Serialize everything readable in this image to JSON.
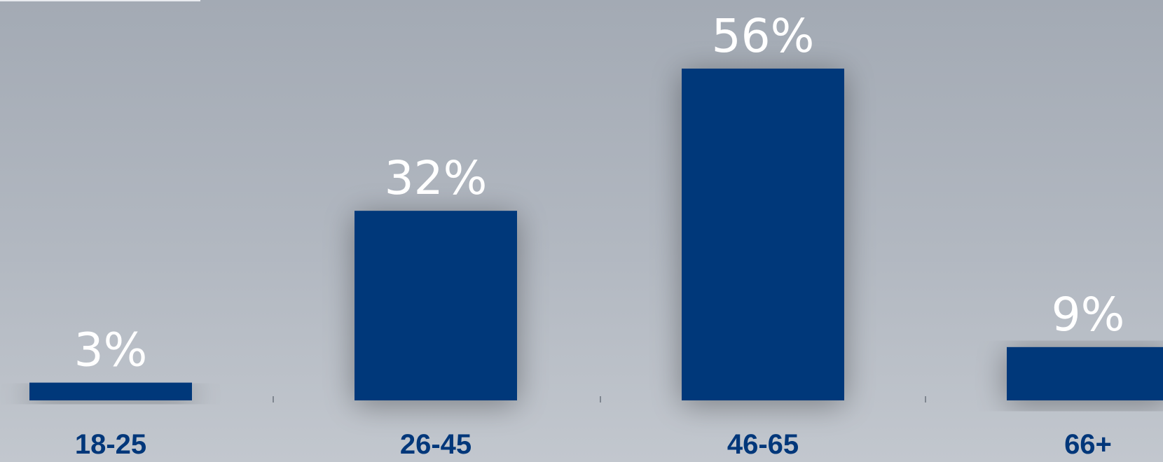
{
  "chart_data": {
    "type": "bar",
    "categories": [
      "18-25",
      "26-45",
      "46-65",
      "66+"
    ],
    "values": [
      3,
      32,
      56,
      9
    ],
    "value_labels": [
      "3%",
      "32%",
      "56%",
      "9%"
    ],
    "title": "",
    "xlabel": "",
    "ylabel": "",
    "ylim": [
      0,
      56
    ],
    "grid": false,
    "legend": "none",
    "colors": {
      "bar": "#00377a",
      "value_label": "#ffffff",
      "category_label": "#00377a"
    }
  }
}
